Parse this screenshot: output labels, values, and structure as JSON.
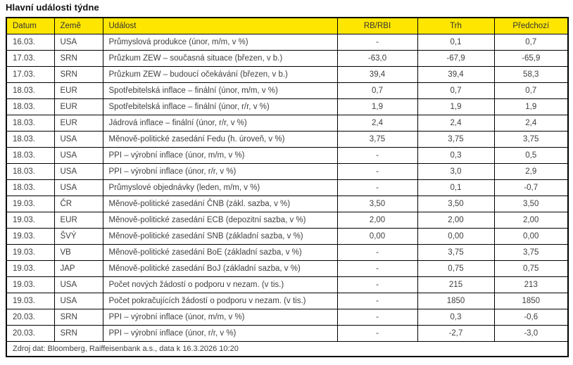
{
  "title": "Hlavní události týdne",
  "colors": {
    "header_bg": "#FFE600",
    "border": "#000000",
    "text": "#404040",
    "title": "#111111"
  },
  "table": {
    "headers": {
      "datum": "Datum",
      "zeme": "Země",
      "udalost": "Událost",
      "rb_rbi": "RB/RBI",
      "trh": "Trh",
      "predchozi": "Předchozí"
    },
    "rows": [
      {
        "datum": "16.03.",
        "zeme": "USA",
        "udalost": "Průmyslová produkce (únor, m/m, v %)",
        "rb_rbi": "-",
        "trh": "0,1",
        "predchozi": "0,7"
      },
      {
        "datum": "17.03.",
        "zeme": "SRN",
        "udalost": "Průzkum ZEW – současná situace (březen, v b.)",
        "rb_rbi": "-63,0",
        "trh": "-67,9",
        "predchozi": "-65,9"
      },
      {
        "datum": "17.03.",
        "zeme": "SRN",
        "udalost": "Průzkum ZEW – budoucí očekávání (březen, v b.)",
        "rb_rbi": "39,4",
        "trh": "39,4",
        "predchozi": "58,3"
      },
      {
        "datum": "18.03.",
        "zeme": "EUR",
        "udalost": "Spotřebitelská inflace – finální (únor, m/m, v %)",
        "rb_rbi": "0,7",
        "trh": "0,7",
        "predchozi": "0,7"
      },
      {
        "datum": "18.03.",
        "zeme": "EUR",
        "udalost": "Spotřebitelská inflace – finální (únor, r/r, v %)",
        "rb_rbi": "1,9",
        "trh": "1,9",
        "predchozi": "1,9"
      },
      {
        "datum": "18.03.",
        "zeme": "EUR",
        "udalost": "Jádrová inflace – finální (únor, r/r, v %)",
        "rb_rbi": "2,4",
        "trh": "2,4",
        "predchozi": "2,4"
      },
      {
        "datum": "18.03.",
        "zeme": "USA",
        "udalost": "Měnově-politické zasedání Fedu (h. úroveň, v %)",
        "rb_rbi": "3,75",
        "trh": "3,75",
        "predchozi": "3,75"
      },
      {
        "datum": "18.03.",
        "zeme": "USA",
        "udalost": "PPI – výrobní inflace (únor, m/m, v %)",
        "rb_rbi": "-",
        "trh": "0,3",
        "predchozi": "0,5"
      },
      {
        "datum": "18.03.",
        "zeme": "USA",
        "udalost": "PPI – výrobní inflace (únor, r/r, v %)",
        "rb_rbi": "-",
        "trh": "3,0",
        "predchozi": "2,9"
      },
      {
        "datum": "18.03.",
        "zeme": "USA",
        "udalost": "Průmyslové objednávky (leden, m/m, v %)",
        "rb_rbi": "-",
        "trh": "0,1",
        "predchozi": "-0,7"
      },
      {
        "datum": "19.03.",
        "zeme": "ČR",
        "udalost": "Měnově-politické zasedání ČNB (zákl. sazba, v %)",
        "rb_rbi": "3,50",
        "trh": "3,50",
        "predchozi": "3,50"
      },
      {
        "datum": "19.03.",
        "zeme": "EUR",
        "udalost": "Měnově-politické zasedání ECB (depozitní sazba, v %)",
        "rb_rbi": "2,00",
        "trh": "2,00",
        "predchozi": "2,00"
      },
      {
        "datum": "19.03.",
        "zeme": "ŠVÝ",
        "udalost": "Měnově-politické zasedání SNB (základní sazba, v %)",
        "rb_rbi": "0,00",
        "trh": "0,00",
        "predchozi": "0,00"
      },
      {
        "datum": "19.03.",
        "zeme": "VB",
        "udalost": "Měnově-politické zasedání BoE (základní sazba, v %)",
        "rb_rbi": "-",
        "trh": "3,75",
        "predchozi": "3,75"
      },
      {
        "datum": "19.03.",
        "zeme": "JAP",
        "udalost": "Měnově-politické zasedání BoJ (základní sazba, v %)",
        "rb_rbi": "-",
        "trh": "0,75",
        "predchozi": "0,75"
      },
      {
        "datum": "19.03.",
        "zeme": "USA",
        "udalost": "Počet nových žádostí o podporu v nezam. (v tis.)",
        "rb_rbi": "-",
        "trh": "215",
        "predchozi": "213"
      },
      {
        "datum": "19.03.",
        "zeme": "USA",
        "udalost": "Počet pokračujících žádostí o podporu v nezam. (v tis.)",
        "rb_rbi": "-",
        "trh": "1850",
        "predchozi": "1850"
      },
      {
        "datum": "20.03.",
        "zeme": "SRN",
        "udalost": "PPI – výrobní inflace (únor, m/m, v %)",
        "rb_rbi": "-",
        "trh": "0,3",
        "predchozi": "-0,6"
      },
      {
        "datum": "20.03.",
        "zeme": "SRN",
        "udalost": "PPI – výrobní inflace (únor, r/r, v %)",
        "rb_rbi": "-",
        "trh": "-2,7",
        "predchozi": "-3,0"
      }
    ],
    "source_note": "Zdroj dat: Bloomberg, Raiffeisenbank a.s., data k 16.3.2026 10:20"
  }
}
